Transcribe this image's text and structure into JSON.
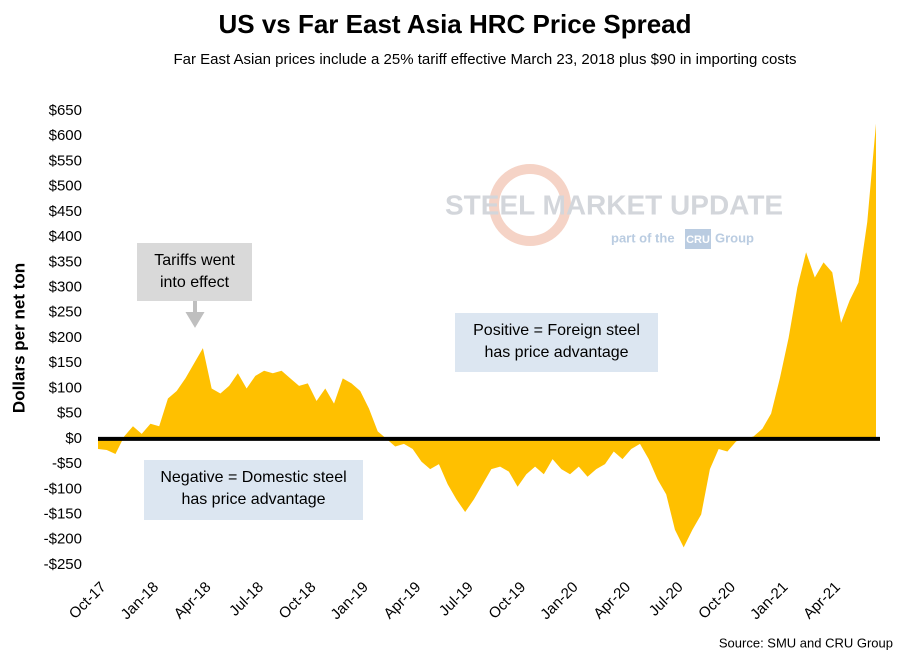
{
  "chart_data": {
    "type": "area",
    "title": "US vs Far East Asia HRC Price Spread",
    "subtitle": "Far East Asian prices include a 25% tariff effective March 23, 2018 plus $90 in importing costs",
    "y_label": "Dollars per net ton",
    "source": "Source: SMU and CRU Group",
    "color": "#FFC000",
    "grid": false,
    "categories": [
      "Oct-17",
      null,
      null,
      null,
      null,
      null,
      "Jan-18",
      null,
      null,
      null,
      null,
      null,
      "Apr-18",
      null,
      null,
      null,
      null,
      null,
      "Jul-18",
      null,
      null,
      null,
      null,
      null,
      "Oct-18",
      null,
      null,
      null,
      null,
      null,
      "Jan-19",
      null,
      null,
      null,
      null,
      null,
      "Apr-19",
      null,
      null,
      null,
      null,
      null,
      "Jul-19",
      null,
      null,
      null,
      null,
      null,
      "Oct-19",
      null,
      null,
      null,
      null,
      null,
      "Jan-20",
      null,
      null,
      null,
      null,
      null,
      "Apr-20",
      null,
      null,
      null,
      null,
      null,
      "Jul-20",
      null,
      null,
      null,
      null,
      null,
      "Oct-20",
      null,
      null,
      null,
      null,
      null,
      "Jan-21",
      null,
      null,
      null,
      null,
      null,
      "Apr-21",
      null,
      null,
      null,
      null,
      null
    ],
    "values": [
      -20,
      -22,
      -30,
      5,
      25,
      10,
      30,
      25,
      80,
      95,
      120,
      150,
      180,
      100,
      90,
      105,
      130,
      100,
      125,
      135,
      130,
      135,
      120,
      105,
      110,
      75,
      100,
      70,
      120,
      110,
      95,
      60,
      15,
      0,
      -15,
      -10,
      -20,
      -45,
      -60,
      -50,
      -90,
      -120,
      -145,
      -120,
      -90,
      -60,
      -55,
      -65,
      -95,
      -70,
      -55,
      -70,
      -40,
      -60,
      -70,
      -55,
      -75,
      -60,
      -50,
      -25,
      -40,
      -20,
      -10,
      -40,
      -80,
      -110,
      -180,
      -215,
      -180,
      -150,
      -60,
      -20,
      -25,
      -5,
      0,
      5,
      20,
      50,
      120,
      200,
      300,
      370,
      320,
      350,
      330,
      230,
      275,
      310,
      430,
      625
    ],
    "ylim": [
      -250,
      650
    ],
    "yticks": [
      {
        "value": -250,
        "label": "-$250"
      },
      {
        "value": -200,
        "label": "-$200"
      },
      {
        "value": -150,
        "label": "-$150"
      },
      {
        "value": -100,
        "label": "-$100"
      },
      {
        "value": -50,
        "label": "-$50"
      },
      {
        "value": 0,
        "label": "$0"
      },
      {
        "value": 50,
        "label": "$50"
      },
      {
        "value": 100,
        "label": "$100"
      },
      {
        "value": 150,
        "label": "$150"
      },
      {
        "value": 200,
        "label": "$200"
      },
      {
        "value": 250,
        "label": "$250"
      },
      {
        "value": 300,
        "label": "$300"
      },
      {
        "value": 350,
        "label": "$350"
      },
      {
        "value": 400,
        "label": "$400"
      },
      {
        "value": 450,
        "label": "$450"
      },
      {
        "value": 500,
        "label": "$500"
      },
      {
        "value": 550,
        "label": "$550"
      },
      {
        "value": 600,
        "label": "$600"
      },
      {
        "value": 650,
        "label": "$650"
      }
    ],
    "annotations": [
      {
        "lines": [
          "Tariffs went",
          "into effect"
        ]
      },
      {
        "lines": [
          "Positive = Foreign steel",
          "has price advantage"
        ]
      },
      {
        "lines": [
          "Negative = Domestic steel",
          "has price advantage"
        ]
      }
    ],
    "watermark": {
      "brand": "STEEL MARKET UPDATE",
      "tag_before": "part of the",
      "tag_logo": "CRU",
      "tag_after": "Group"
    }
  }
}
